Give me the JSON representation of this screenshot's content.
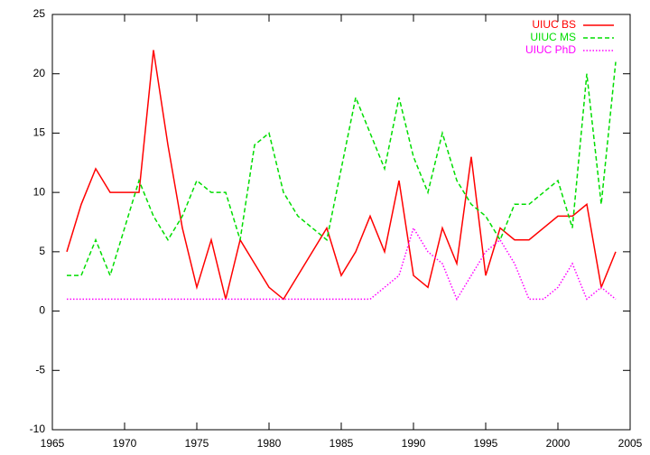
{
  "chart_data": {
    "type": "line",
    "x": [
      1966,
      1967,
      1968,
      1969,
      1970,
      1971,
      1972,
      1973,
      1974,
      1975,
      1976,
      1977,
      1978,
      1979,
      1980,
      1981,
      1982,
      1983,
      1984,
      1985,
      1986,
      1987,
      1988,
      1989,
      1990,
      1991,
      1992,
      1993,
      1994,
      1995,
      1996,
      1997,
      1998,
      1999,
      2000,
      2001,
      2002,
      2003,
      2004
    ],
    "series": [
      {
        "name": "UIUC BS",
        "color": "#ff0000",
        "dash": "solid",
        "values": [
          5,
          9,
          12,
          10,
          10,
          10,
          22,
          14,
          7,
          2,
          6,
          1,
          6,
          4,
          2,
          1,
          3,
          5,
          7,
          3,
          5,
          8,
          5,
          11,
          3,
          2,
          7,
          4,
          13,
          3,
          7,
          6,
          6,
          7,
          8,
          8,
          9,
          2,
          5
        ]
      },
      {
        "name": "UIUC MS",
        "color": "#00dd00",
        "dash": "dashed",
        "values": [
          3,
          3,
          6,
          3,
          7,
          11,
          8,
          6,
          8,
          11,
          10,
          10,
          6,
          14,
          15,
          10,
          8,
          7,
          6,
          12,
          18,
          15,
          12,
          18,
          13,
          10,
          15,
          11,
          9,
          8,
          6,
          9,
          9,
          10,
          11,
          7,
          20,
          9,
          21
        ]
      },
      {
        "name": "UIUC PhD",
        "color": "#ff00ff",
        "dash": "dotted",
        "values": [
          1,
          1,
          1,
          1,
          1,
          1,
          1,
          1,
          1,
          1,
          1,
          1,
          1,
          1,
          1,
          1,
          1,
          1,
          1,
          1,
          1,
          1,
          2,
          3,
          7,
          5,
          4,
          1,
          3,
          5,
          6,
          4,
          1,
          1,
          2,
          4,
          1,
          2,
          1
        ]
      }
    ],
    "xlim": [
      1965,
      2005
    ],
    "xticks": [
      1965,
      1970,
      1975,
      1980,
      1985,
      1990,
      1995,
      2000,
      2005
    ],
    "ylim": [
      -10,
      25
    ],
    "yticks": [
      -10,
      -5,
      0,
      5,
      10,
      15,
      20,
      25
    ],
    "legend": "top-right"
  }
}
